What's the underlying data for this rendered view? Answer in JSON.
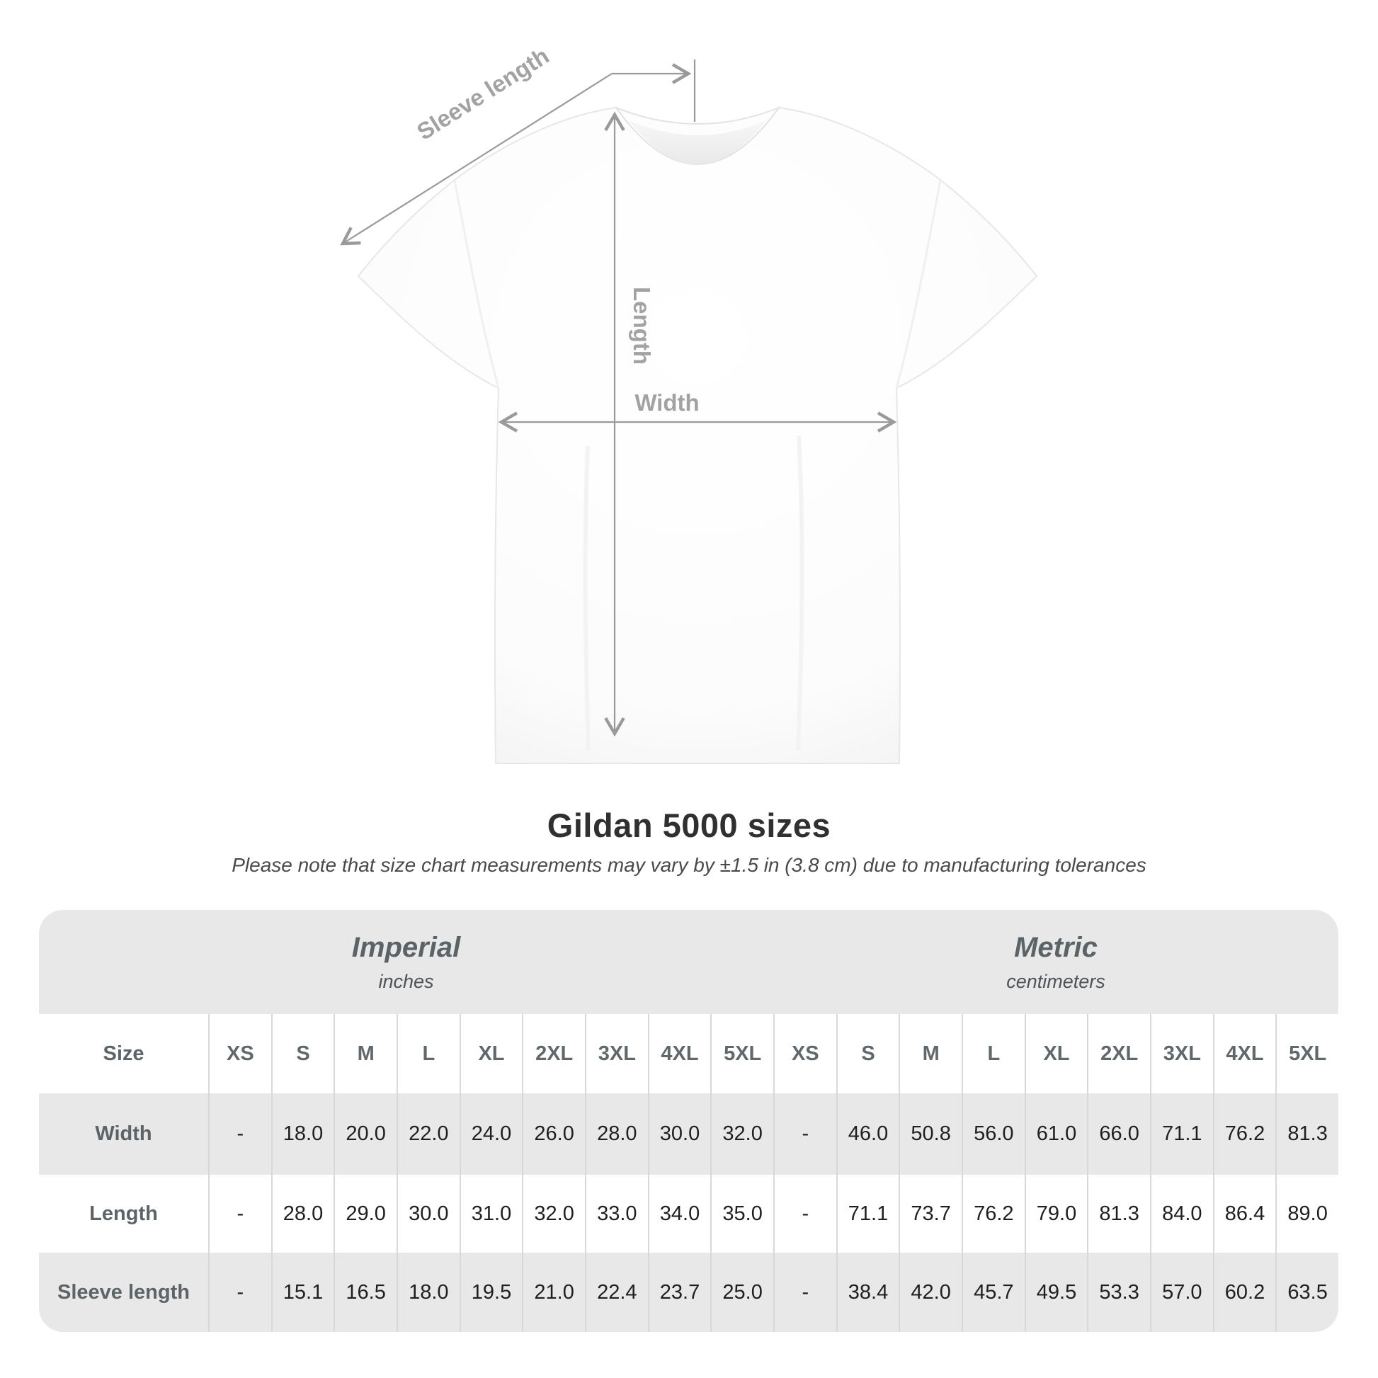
{
  "diagram": {
    "labels": {
      "sleeve_length": "Sleeve length",
      "length": "Length",
      "width": "Width"
    },
    "colors": {
      "dimension_line": "#9a9a9a",
      "dimension_text": "#a2a2a2",
      "tee_outline": "#e7e7e7"
    }
  },
  "title": "Gildan 5000 sizes",
  "subtitle": "Please note that size chart measurements may vary by ±1.5 in (3.8 cm) due to manufacturing tolerances",
  "table": {
    "groups": [
      {
        "name": "Imperial",
        "unit": "inches"
      },
      {
        "name": "Metric",
        "unit": "centimeters"
      }
    ],
    "size_header": "Size",
    "sizes": [
      "XS",
      "S",
      "M",
      "L",
      "XL",
      "2XL",
      "3XL",
      "4XL",
      "5XL",
      "XS",
      "S",
      "M",
      "L",
      "XL",
      "2XL",
      "3XL",
      "4XL",
      "5XL"
    ],
    "rows": [
      {
        "label": "Width",
        "values": [
          "-",
          "18.0",
          "20.0",
          "22.0",
          "24.0",
          "26.0",
          "28.0",
          "30.0",
          "32.0",
          "-",
          "46.0",
          "50.8",
          "56.0",
          "61.0",
          "66.0",
          "71.1",
          "76.2",
          "81.3"
        ]
      },
      {
        "label": "Length",
        "values": [
          "-",
          "28.0",
          "29.0",
          "30.0",
          "31.0",
          "32.0",
          "33.0",
          "34.0",
          "35.0",
          "-",
          "71.1",
          "73.7",
          "76.2",
          "79.0",
          "81.3",
          "84.0",
          "86.4",
          "89.0"
        ]
      },
      {
        "label": "Sleeve length",
        "values": [
          "-",
          "15.1",
          "16.5",
          "18.0",
          "19.5",
          "21.0",
          "22.4",
          "23.7",
          "25.0",
          "-",
          "38.4",
          "42.0",
          "45.7",
          "49.5",
          "53.3",
          "57.0",
          "60.2",
          "63.5"
        ]
      }
    ],
    "colors": {
      "band_background": "#e8e8e8",
      "separator": "#d8d8d8",
      "header_text": "#60686c",
      "value_text": "#1f1f1f"
    }
  }
}
